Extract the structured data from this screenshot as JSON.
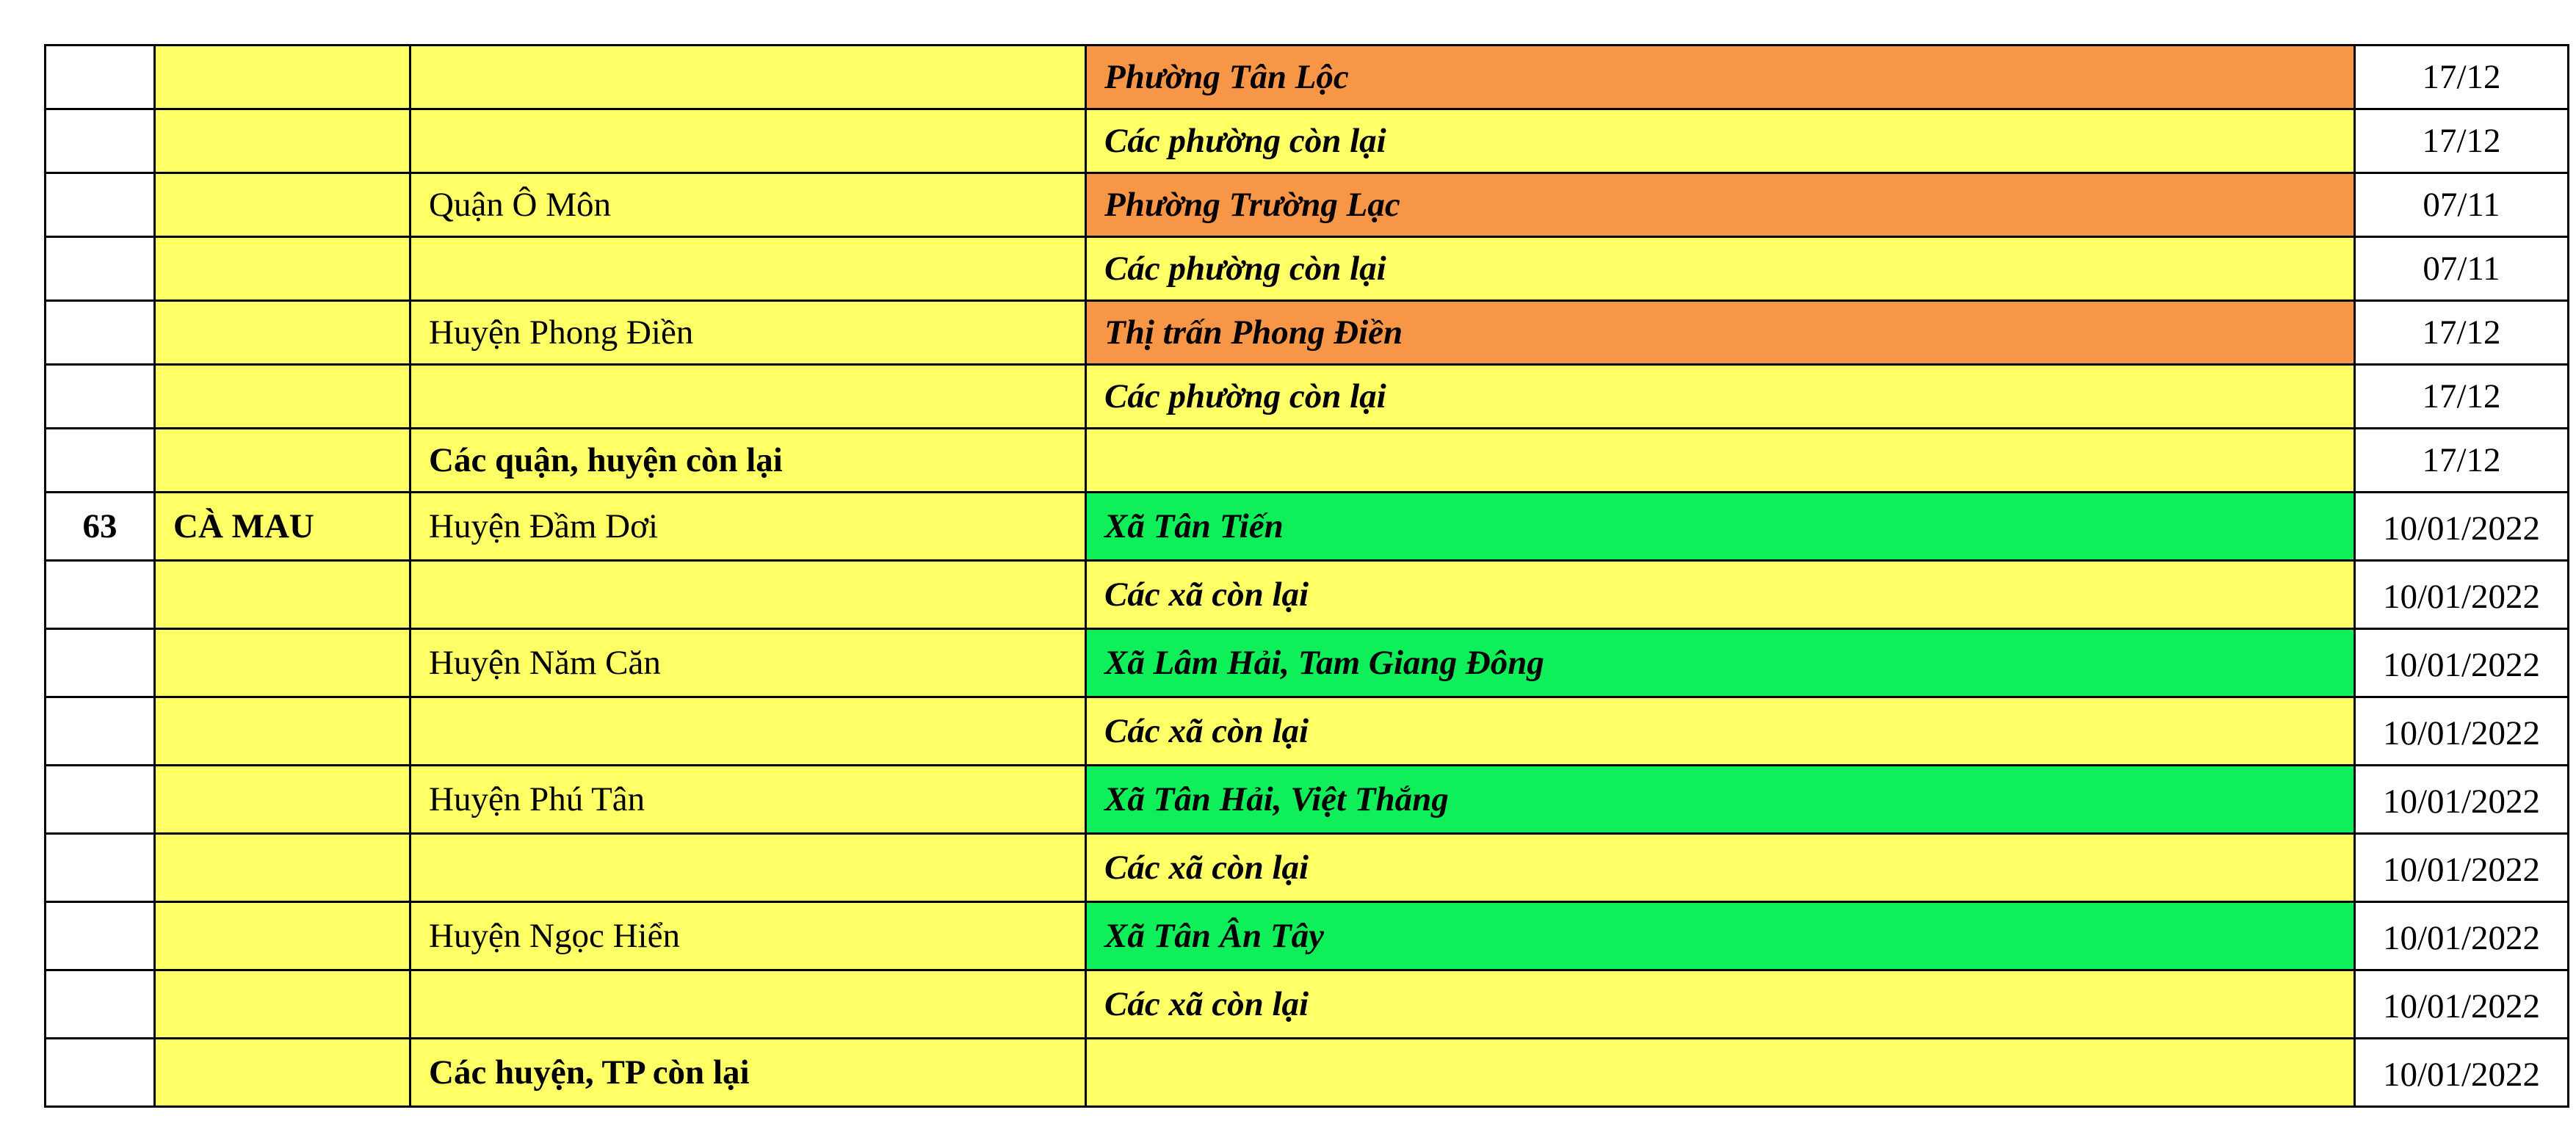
{
  "colors": {
    "yellow": "#ffff66",
    "orange": "#f79646",
    "green": "#0fef5a",
    "white": "#ffffff"
  },
  "rows": [
    {
      "stt": "",
      "province": "",
      "district": "",
      "district_bold": false,
      "ward": "Phường Tân Lộc",
      "level": "orange",
      "date": "17/12",
      "date_top": false
    },
    {
      "stt": "",
      "province": "",
      "district": "",
      "district_bold": false,
      "ward": "Các phường còn lại",
      "level": "yellow",
      "date": "17/12",
      "date_top": false
    },
    {
      "stt": "",
      "province": "",
      "district": "Quận Ô Môn",
      "district_bold": false,
      "ward": "Phường Trường Lạc",
      "level": "orange",
      "date": "07/11",
      "date_top": false
    },
    {
      "stt": "",
      "province": "",
      "district": "",
      "district_bold": false,
      "ward": "Các phường còn lại",
      "level": "yellow",
      "date": "07/11",
      "date_top": false
    },
    {
      "stt": "",
      "province": "",
      "district": "Huyện Phong Điền",
      "district_bold": false,
      "ward": "Thị trấn Phong Điền",
      "level": "orange",
      "date": "17/12",
      "date_top": false
    },
    {
      "stt": "",
      "province": "",
      "district": "",
      "district_bold": false,
      "ward": "Các phường còn lại",
      "level": "yellow",
      "date": "17/12",
      "date_top": false
    },
    {
      "stt": "",
      "province": "",
      "district": "Các quận, huyện còn lại",
      "district_bold": true,
      "ward": "",
      "level": "yellow",
      "date": "17/12",
      "date_top": false
    },
    {
      "stt": "63",
      "province": "CÀ MAU",
      "district": "Huyện Đầm Dơi",
      "district_bold": false,
      "ward": "Xã Tân Tiến",
      "level": "green",
      "date": "10/01/2022",
      "date_top": true
    },
    {
      "stt": "",
      "province": "",
      "district": "",
      "district_bold": false,
      "ward": "Các xã còn lại",
      "level": "yellow",
      "date": "10/01/2022",
      "date_top": true
    },
    {
      "stt": "",
      "province": "",
      "district": "Huyện Năm Căn",
      "district_bold": false,
      "ward": "Xã Lâm Hải, Tam Giang Đông",
      "level": "green",
      "date": "10/01/2022",
      "date_top": true
    },
    {
      "stt": "",
      "province": "",
      "district": "",
      "district_bold": false,
      "ward": "Các xã còn lại",
      "level": "yellow",
      "date": "10/01/2022",
      "date_top": true
    },
    {
      "stt": "",
      "province": "",
      "district": "Huyện Phú Tân",
      "district_bold": false,
      "ward": "Xã Tân Hải, Việt Thắng",
      "level": "green",
      "date": "10/01/2022",
      "date_top": true
    },
    {
      "stt": "",
      "province": "",
      "district": "",
      "district_bold": false,
      "ward": "Các xã còn lại",
      "level": "yellow",
      "date": "10/01/2022",
      "date_top": true
    },
    {
      "stt": "",
      "province": "",
      "district": "Huyện Ngọc Hiển",
      "district_bold": false,
      "ward": "Xã Tân Ân Tây",
      "level": "green",
      "date": "10/01/2022",
      "date_top": true
    },
    {
      "stt": "",
      "province": "",
      "district": "",
      "district_bold": false,
      "ward": "Các xã còn lại",
      "level": "yellow",
      "date": "10/01/2022",
      "date_top": true
    },
    {
      "stt": "",
      "province": "",
      "district": "Các huyện, TP còn lại",
      "district_bold": true,
      "ward": "",
      "level": "yellow",
      "date": "10/01/2022",
      "date_top": true
    }
  ]
}
